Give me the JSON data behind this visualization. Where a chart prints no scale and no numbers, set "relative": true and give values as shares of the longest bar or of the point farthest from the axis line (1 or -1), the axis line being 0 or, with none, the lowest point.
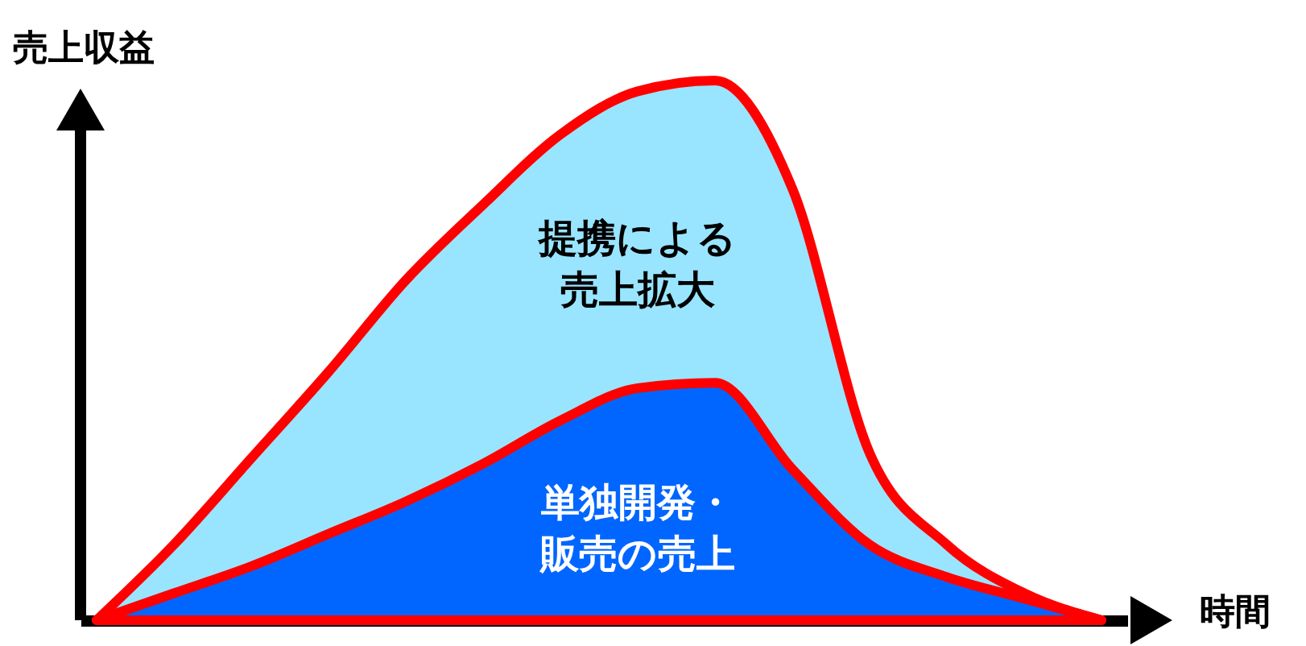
{
  "chart_data": {
    "type": "area",
    "relative": true,
    "ylabel": "売上収益",
    "xlabel": "時間",
    "legend": false,
    "grid": false,
    "categories": [
      null,
      null,
      null,
      null,
      null,
      null,
      null,
      null,
      null,
      null,
      null,
      null,
      null,
      null
    ],
    "series": [
      {
        "name": "提携による売上拡大",
        "color": "#99e5ff",
        "values": [
          0,
          0.14,
          0.3,
          0.46,
          0.63,
          0.77,
          0.9,
          0.98,
          1,
          0.8,
          0.31,
          0.14,
          0.05,
          0
        ]
      },
      {
        "name": "単独開発・販売の売上",
        "color": "#0066ff",
        "values": [
          0,
          0.05,
          0.1,
          0.16,
          0.22,
          0.29,
          0.37,
          0.43,
          0.44,
          0.28,
          0.14,
          0.08,
          0.04,
          0
        ]
      }
    ]
  }
}
